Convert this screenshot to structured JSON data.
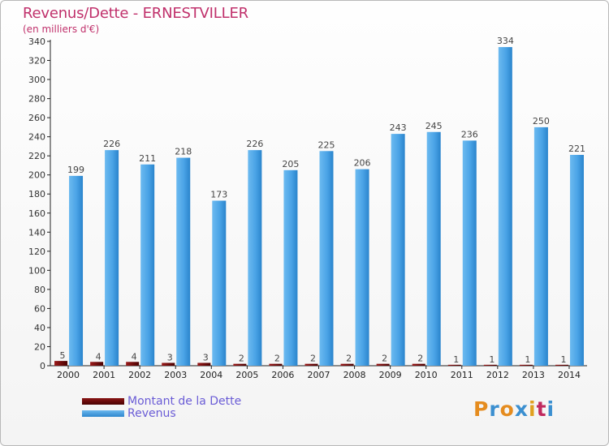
{
  "header": {
    "title": "Revenus/Dette - ERNESTVILLER",
    "subtitle": "(en milliers d'€)"
  },
  "legend": {
    "debt_label": "Montant de la Dette",
    "revenue_label": "Revenus"
  },
  "logo": {
    "text": "Proxiti"
  },
  "colors": {
    "title": "#c0306b",
    "debt": "#6b0a0a",
    "revenue": "#3a9ae0",
    "legend_text": "#6a5cd6",
    "axis_text": "#333333"
  },
  "chart_data": {
    "type": "bar",
    "title": "Revenus/Dette - ERNESTVILLER",
    "subtitle": "(en milliers d'€)",
    "categories": [
      "2000",
      "2001",
      "2002",
      "2003",
      "2004",
      "2005",
      "2006",
      "2007",
      "2008",
      "2009",
      "2010",
      "2011",
      "2012",
      "2013",
      "2014"
    ],
    "series": [
      {
        "name": "Montant de la Dette",
        "values": [
          5,
          4,
          4,
          3,
          3,
          2,
          2,
          2,
          2,
          2,
          2,
          1,
          1,
          1,
          1
        ]
      },
      {
        "name": "Revenus",
        "values": [
          199,
          226,
          211,
          218,
          173,
          226,
          205,
          225,
          206,
          243,
          245,
          236,
          334,
          250,
          221
        ]
      }
    ],
    "ylim": [
      0,
      340
    ],
    "yticks": [
      0,
      20,
      40,
      60,
      80,
      100,
      120,
      140,
      160,
      180,
      200,
      220,
      240,
      260,
      280,
      300,
      320,
      340
    ],
    "grid": false,
    "legend_position": "bottom-left"
  }
}
